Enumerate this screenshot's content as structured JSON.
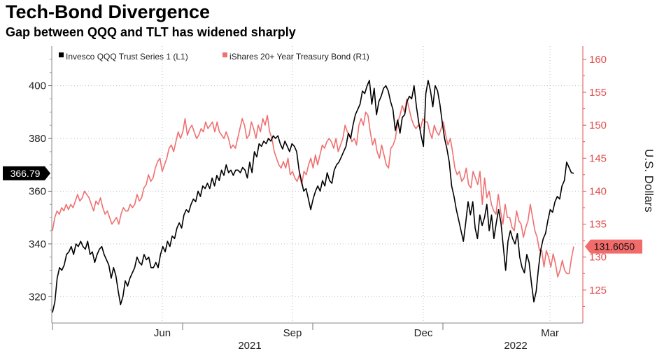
{
  "title": "Tech-Bond Divergence",
  "subtitle": "Gap between QQQ and TLT has widened sharply",
  "chart_data": {
    "type": "line",
    "x_axis": {
      "month_labels": [
        "Jun",
        "Sep",
        "Dec",
        "Mar"
      ],
      "year_labels": [
        "2021",
        "2022"
      ],
      "range": [
        "2021-03",
        "2022-03"
      ]
    },
    "left_axis": {
      "ticks": [
        320,
        340,
        360,
        380,
        400
      ],
      "ylim": [
        310,
        415
      ]
    },
    "right_axis": {
      "ticks": [
        125,
        130,
        135,
        140,
        145,
        150,
        155,
        160
      ],
      "ylim": [
        120,
        162
      ],
      "label": "U.S. Dollars"
    },
    "legend": [
      "Invesco QQQ Trust Series 1 (L1)",
      "iShares 20+ Year Treasury Bond (R1)"
    ],
    "colors": {
      "qqq": "#000000",
      "tlt": "#f07070",
      "axis_right": "#e05050",
      "grid": "#bbbbbb"
    },
    "last_values": {
      "qqq": "366.79",
      "tlt": "131.6050"
    },
    "series": [
      {
        "name": "Invesco QQQ Trust Series 1 (L1)",
        "axis": "left",
        "values": [
          314,
          318,
          327,
          331,
          330,
          332,
          336,
          337,
          339,
          336,
          340,
          339,
          341,
          339,
          338,
          341,
          336,
          337,
          333,
          336,
          338,
          339,
          336,
          334,
          332,
          327,
          331,
          328,
          322,
          317,
          320,
          326,
          324,
          327,
          329,
          331,
          335,
          333,
          332,
          336,
          334,
          335,
          331,
          331,
          333,
          331,
          336,
          339,
          337,
          341,
          339,
          343,
          342,
          346,
          348,
          346,
          351,
          353,
          352,
          355,
          357,
          356,
          360,
          358,
          362,
          361,
          363,
          361,
          365,
          362,
          366,
          364,
          368,
          366,
          370,
          367,
          368,
          366,
          368,
          368,
          367,
          369,
          368,
          365,
          371,
          367,
          375,
          373,
          378,
          377,
          379,
          378,
          380,
          379,
          381,
          380,
          381,
          378,
          376,
          379,
          377,
          375,
          378,
          377,
          375,
          368,
          364,
          360,
          361,
          357,
          353,
          357,
          360,
          362,
          360,
          364,
          362,
          367,
          364,
          363,
          368,
          370,
          371,
          373,
          375,
          377,
          382,
          380,
          385,
          389,
          391,
          393,
          398,
          397,
          400,
          402,
          393,
          399,
          389,
          394,
          396,
          399,
          400,
          398,
          394,
          391,
          383,
          387,
          382,
          388,
          389,
          394,
          396,
          395,
          400,
          392,
          386,
          381,
          377,
          397,
          402,
          398,
          392,
          400,
          398,
          393,
          386,
          380,
          376,
          371,
          362,
          358,
          353,
          349,
          345,
          341,
          348,
          356,
          351,
          356,
          346,
          342,
          351,
          347,
          350,
          355,
          345,
          351,
          342,
          348,
          353,
          348,
          339,
          330,
          341,
          345,
          342,
          340,
          344,
          335,
          331,
          329,
          336,
          333,
          325,
          318,
          322,
          331,
          338,
          342,
          344,
          349,
          353,
          352,
          356,
          358,
          357,
          362,
          364,
          371,
          369,
          367,
          366.79
        ]
      },
      {
        "name": "iShares 20+ Year Treasury Bond (R1)",
        "axis": "right",
        "values": [
          134,
          136,
          137,
          136.5,
          137.5,
          137,
          138,
          137.2,
          138,
          137.5,
          138.5,
          139.5,
          138.5,
          139,
          140,
          139.5,
          139,
          138,
          137,
          138.5,
          138,
          139,
          137.5,
          136.5,
          137,
          136,
          135,
          135.5,
          136,
          135,
          136.5,
          137.5,
          137,
          137,
          138,
          137.5,
          138,
          139.5,
          138.5,
          139,
          140.5,
          141,
          142.5,
          141.5,
          142,
          143.5,
          144.5,
          145,
          143,
          144,
          145,
          146.5,
          147,
          146,
          147.5,
          149,
          148,
          149,
          151,
          148.5,
          149.5,
          150,
          149,
          148,
          148.5,
          149.5,
          149,
          150.5,
          149.5,
          150,
          150.5,
          149,
          150.5,
          149,
          148.5,
          148,
          149,
          148,
          146.5,
          147,
          146.5,
          148,
          149.5,
          151,
          150,
          148,
          148.5,
          150.5,
          149.5,
          148,
          150,
          149,
          151,
          150,
          151.5,
          149,
          148,
          146,
          145,
          144,
          143.5,
          144.5,
          143.5,
          145,
          142.5,
          143,
          142,
          141.5,
          142.5,
          141,
          143,
          142.5,
          144,
          145,
          143.5,
          145.5,
          144,
          145.5,
          147,
          146.5,
          147.5,
          148,
          147.5,
          146.5,
          148,
          146,
          147,
          148,
          150,
          149,
          148.5,
          147.5,
          148,
          147,
          150,
          151,
          150,
          152,
          151.5,
          149,
          147,
          148,
          146,
          145,
          147,
          145.5,
          144,
          143.5,
          146.5,
          147,
          148,
          150.5,
          151.5,
          153,
          152,
          154,
          152.5,
          151,
          150,
          149.5,
          150,
          149.5,
          151,
          150.5,
          150.5,
          149,
          148,
          150,
          149,
          148.5,
          149.5,
          150.5,
          148.5,
          147,
          148,
          146,
          143.5,
          142.5,
          143,
          141.5,
          142,
          143.5,
          141,
          140.5,
          143,
          142,
          141,
          143,
          138,
          142,
          139,
          140,
          138,
          137,
          136.5,
          139.5,
          137,
          135,
          138,
          136,
          136,
          134.5,
          134,
          137,
          135.5,
          135,
          133,
          134.5,
          135.5,
          138,
          136,
          134,
          133,
          131,
          131,
          128.5,
          131,
          130,
          128.5,
          130.5,
          129,
          127,
          128,
          129.5,
          128,
          127.5,
          127.5,
          129.8,
          131.605
        ]
      }
    ]
  }
}
